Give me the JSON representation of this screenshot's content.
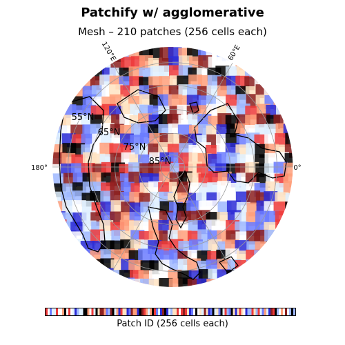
{
  "title": "Patchify w/ agglomerative",
  "subtitle": "Mesh – 210 patches (256 cells each)",
  "colorbar_label": "Patch ID (256 cells each)",
  "map": {
    "projection": "north-polar-stereographic",
    "latitude_labels": [
      "55°N",
      "65°N",
      "75°N",
      "85°N"
    ],
    "longitude_labels": {
      "lon_180": "180°",
      "lon_120e": "120°E",
      "lon_60e": "60°E",
      "lon_0": "0°"
    },
    "patch_count": 210,
    "cells_per_patch": 256,
    "colormap": [
      "#000000",
      "#2b2bd6",
      "#6b7bff",
      "#9fb9ff",
      "#dff0ff",
      "#ffffff",
      "#ffe3c2",
      "#ff9f7a",
      "#ee3a3a",
      "#8b1f1f"
    ]
  }
}
